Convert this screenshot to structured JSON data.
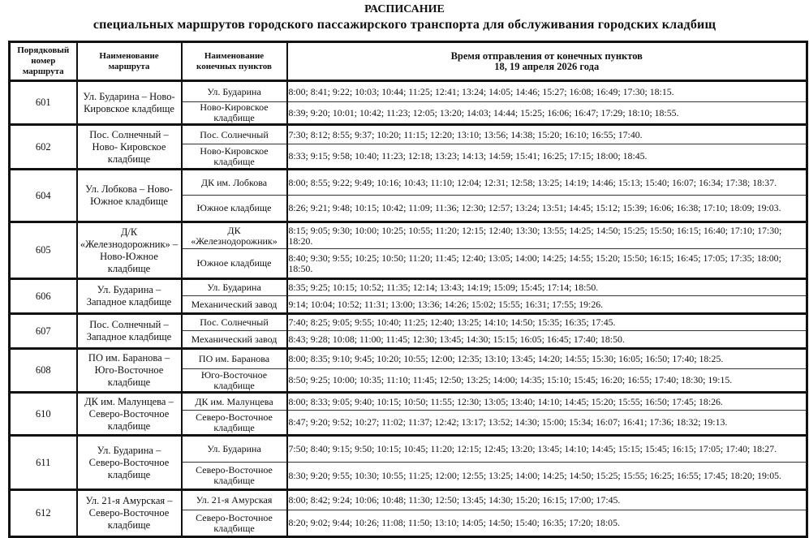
{
  "title": "РАСПИСАНИЕ",
  "subtitle": "специальных маршрутов городского пассажирского транспорта для обслуживания городских кладбищ",
  "headers": {
    "number": "Порядковый номер маршрута",
    "route": "Наименование маршрута",
    "stops": "Наименование конечных пунктов",
    "times_line1": "Время отправления от конечных пунктов",
    "times_line2": "18, 19 апреля 2026 года"
  },
  "routes": [
    {
      "number": "601",
      "name": "Ул. Бударина – Ново-Кировское кладбище",
      "stops": [
        {
          "stop": "Ул. Бударина",
          "times": "8:00; 8:41; 9:22; 10:03; 10:44; 11:25; 12:41; 13:24; 14:05; 14:46; 15:27; 16:08; 16:49; 17:30; 18:15."
        },
        {
          "stop": "Ново-Кировское кладбище",
          "times": "8:39; 9:20; 10:01; 10:42; 11:23; 12:05; 13:20; 14:03; 14:44; 15:25; 16:06; 16:47; 17:29; 18:10; 18:55."
        }
      ]
    },
    {
      "number": "602",
      "name": "Пос. Солнечный – Ново- Кировское кладбище",
      "stops": [
        {
          "stop": "Пос. Солнечный",
          "times": "7:30; 8:12; 8:55; 9:37; 10:20; 11:15; 12:20; 13:10; 13:56; 14:38; 15:20; 16:10; 16:55; 17:40."
        },
        {
          "stop": "Ново-Кировское кладбище",
          "times": "8:33; 9:15; 9:58; 10:40; 11:23; 12:18; 13:23; 14:13; 14:59; 15:41; 16:25; 17:15; 18:00; 18:45."
        }
      ]
    },
    {
      "number": "604",
      "name": "Ул. Лобкова – Ново-Южное кладбище",
      "stops": [
        {
          "stop": "ДК им. Лобкова",
          "times": "8:00; 8:55; 9:22; 9:49; 10:16; 10:43; 11:10; 12:04; 12:31; 12:58; 13:25; 14:19; 14:46; 15:13; 15:40; 16:07; 16:34; 17:38; 18:37."
        },
        {
          "stop": "Южное кладбище",
          "times": "8:26; 9:21; 9:48; 10:15; 10:42; 11:09; 11:36; 12:30; 12:57; 13:24; 13:51; 14:45; 15:12; 15:39; 16:06; 16:38; 17:10; 18:09; 19:03."
        }
      ]
    },
    {
      "number": "605",
      "name": "Д/К «Железнодорожник» – Ново-Южное кладбище",
      "stops": [
        {
          "stop": "ДК «Железнодорожник»",
          "times": "8:15; 9:05; 9:30; 10:00; 10:25; 10:55; 11:20; 12:15; 12:40; 13:30; 13:55; 14:25; 14:50; 15:25; 15:50; 16:15; 16:40; 17:10; 17:30; 18:20."
        },
        {
          "stop": "Южное кладбище",
          "times": "8:40; 9:30; 9:55; 10:25; 10:50; 11:20; 11:45; 12:40; 13:05; 14:00; 14:25; 14:55; 15:20; 15:50; 16:15; 16:45; 17:05; 17:35; 18:00; 18:50."
        }
      ]
    },
    {
      "number": "606",
      "name": "Ул. Бударина – Западное кладбище",
      "stops": [
        {
          "stop": "Ул. Бударина",
          "times": "8:35; 9:25; 10:15; 10:52; 11:35; 12:14; 13:43; 14:19; 15:09; 15:45; 17:14; 18:50."
        },
        {
          "stop": "Механический завод",
          "times": "9:14; 10:04; 10:52; 11:31; 13:00; 13:36; 14:26; 15:02; 15:55; 16:31; 17:55; 19:26."
        }
      ]
    },
    {
      "number": "607",
      "name": "Пос. Солнечный – Западное кладбище",
      "stops": [
        {
          "stop": "Пос. Солнечный",
          "times": "7:40; 8:25; 9:05; 9:55; 10:40; 11:25; 12:40; 13:25; 14:10; 14:50; 15:35; 16:35; 17:45."
        },
        {
          "stop": "Механический завод",
          "times": "8:43; 9:28; 10:08; 11:00; 11:45; 12:30; 13:45; 14:30; 15:15; 16:05; 16:45; 17:40; 18:50."
        }
      ]
    },
    {
      "number": "608",
      "name": "ПО им. Баранова – Юго-Восточное кладбище",
      "stops": [
        {
          "stop": "ПО им. Баранова",
          "times": "8:00; 8:35; 9:10; 9:45; 10:20; 10:55; 12:00; 12:35; 13:10; 13:45; 14:20; 14:55; 15:30; 16:05; 16:50; 17:40; 18:25."
        },
        {
          "stop": "Юго-Восточное кладбище",
          "times": "8:50; 9:25; 10:00; 10:35; 11:10; 11:45; 12:50; 13:25; 14:00; 14:35; 15:10; 15:45; 16:20; 16:55; 17:40; 18:30; 19:15."
        }
      ]
    },
    {
      "number": "610",
      "name": "ДК им. Малунцева – Северо-Восточное кладбище",
      "stops": [
        {
          "stop": "ДК им. Малунцева",
          "times": "8:00; 8:33; 9:05; 9:40; 10:15; 10:50; 11:55; 12:30; 13:05; 13:40; 14:10; 14:45; 15:20; 15:55; 16:50; 17:45; 18:26."
        },
        {
          "stop": "Северо-Восточное кладбище",
          "times": "8:47; 9:20; 9:52; 10:27; 11:02; 11:37; 12:42; 13:17; 13:52; 14:30; 15:00; 15:34; 16:07; 16:41; 17:36; 18:32; 19:13."
        }
      ]
    },
    {
      "number": "611",
      "name": "Ул. Бударина – Северо-Восточное кладбище",
      "stops": [
        {
          "stop": "Ул. Бударина",
          "times": "7:50; 8:40; 9:15; 9:50; 10:15; 10:45; 11:20; 12:15; 12:45; 13:20; 13:45; 14:10; 14:45; 15:15; 15:45; 16:15; 17:05; 17:40; 18:27."
        },
        {
          "stop": "Северо-Восточное кладбище",
          "times": "8:30; 9:20; 9:55; 10:30; 10:55; 11:25; 12:00; 12:55; 13:25; 14:00; 14:25; 14:50; 15:25; 15:55; 16:25; 16:55; 17:45; 18:20; 19:05."
        }
      ]
    },
    {
      "number": "612",
      "name": "Ул. 21-я Амурская – Северо-Восточное кладбище",
      "stops": [
        {
          "stop": "Ул. 21-я Амурская",
          "times": "8:00; 8:42; 9:24; 10:06; 10:48; 11:30; 12:50; 13:45; 14:30; 15:20; 16:15; 17:00; 17:45."
        },
        {
          "stop": "Северо-Восточное кладбище",
          "times": "8:20; 9:02; 9:44; 10:26; 11:08; 11:50; 13:10; 14:05; 14:50; 15:40; 16:35; 17:20; 18:05."
        }
      ]
    }
  ]
}
